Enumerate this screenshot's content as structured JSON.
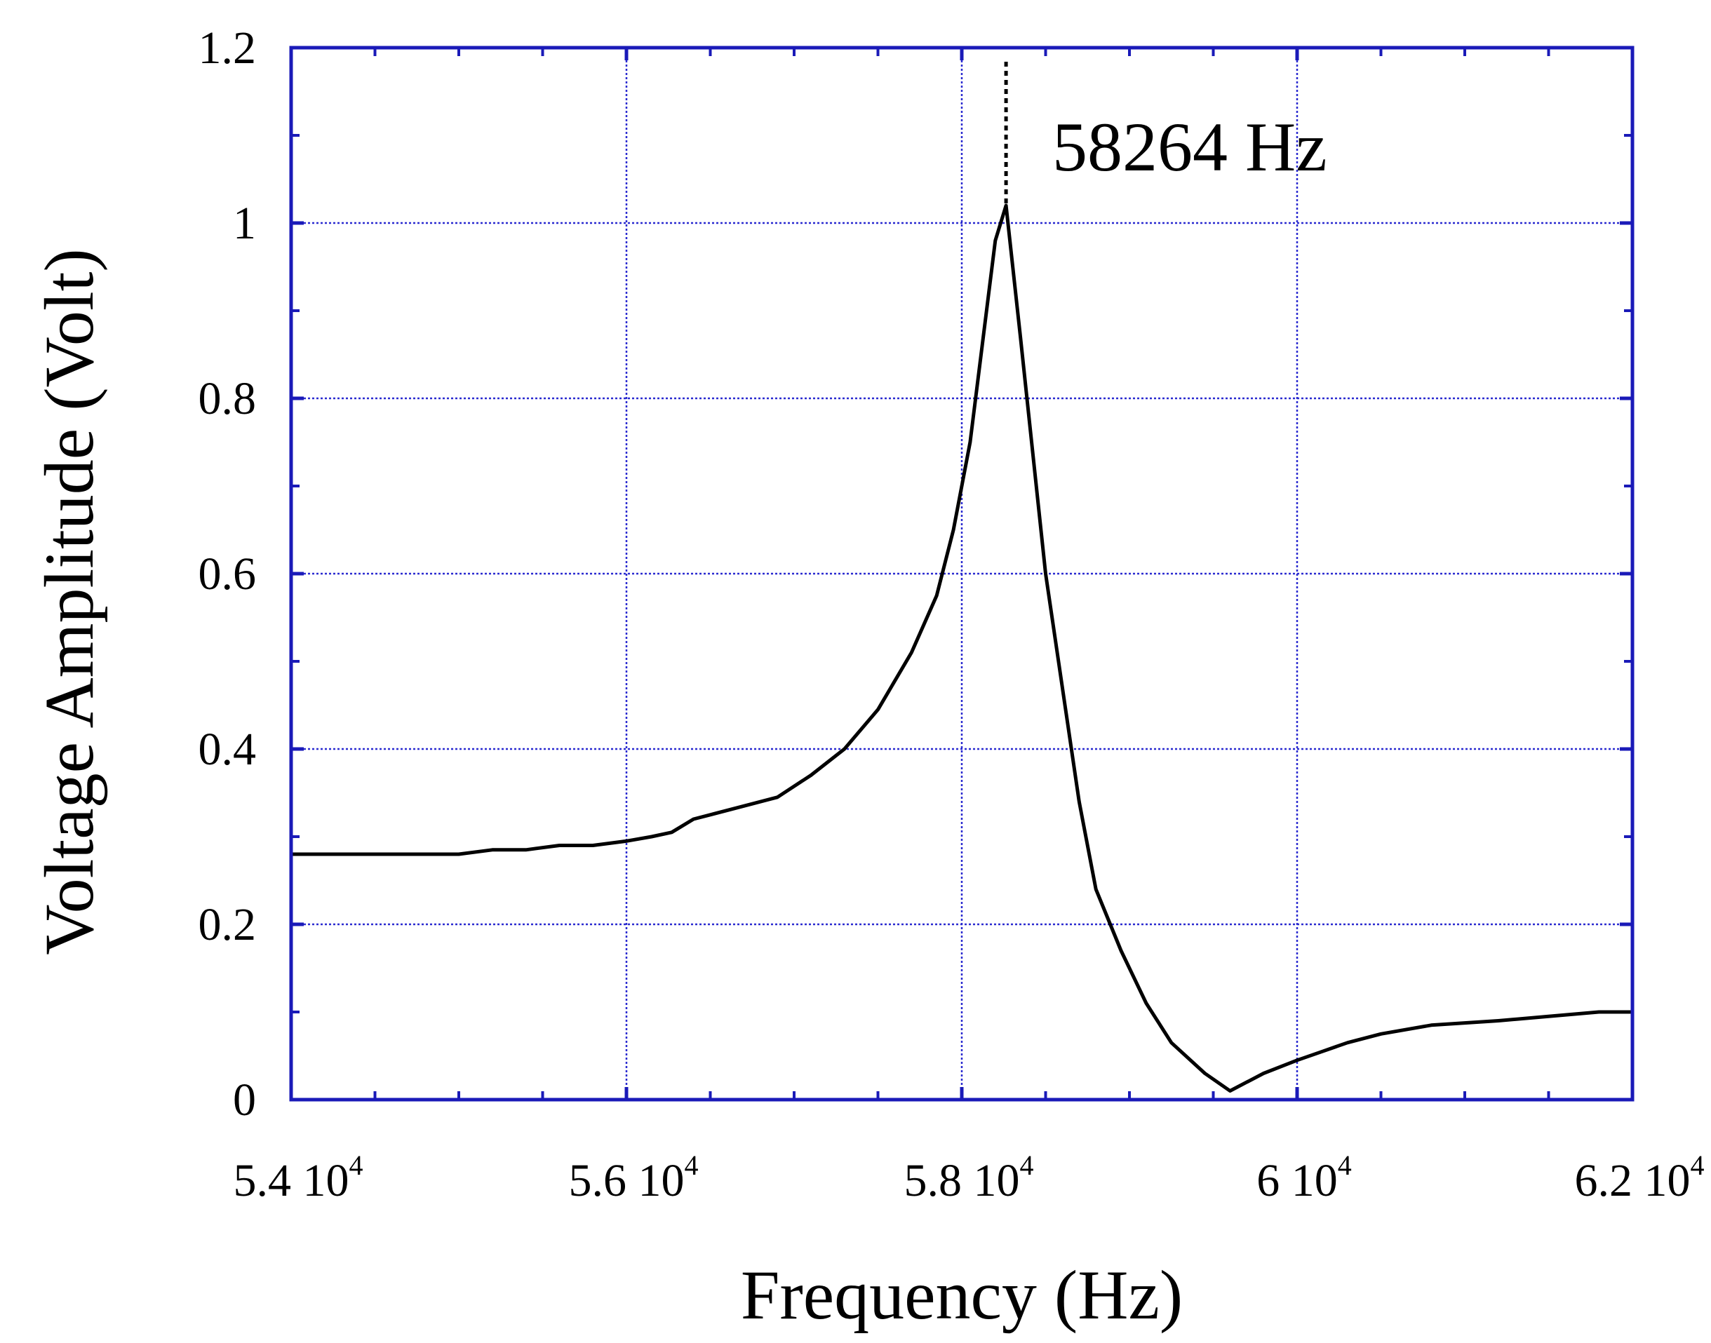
{
  "chart_data": {
    "type": "line",
    "xlabel": "Frequency (Hz)",
    "ylabel": "Voltage Amplitude (Volt)",
    "xlim": [
      54000,
      62000
    ],
    "ylim": [
      0,
      1.2
    ],
    "grid": true,
    "x_ticks": [
      {
        "value": 54000,
        "mantissa": "5.4 10",
        "exponent": "4"
      },
      {
        "value": 56000,
        "mantissa": "5.6 10",
        "exponent": "4"
      },
      {
        "value": 58000,
        "mantissa": "5.8 10",
        "exponent": "4"
      },
      {
        "value": 60000,
        "mantissa": "6 10",
        "exponent": "4"
      },
      {
        "value": 62000,
        "mantissa": "6.2 10",
        "exponent": "4"
      }
    ],
    "y_ticks": [
      {
        "value": 0,
        "label": "0"
      },
      {
        "value": 0.2,
        "label": "0.2"
      },
      {
        "value": 0.4,
        "label": "0.4"
      },
      {
        "value": 0.6,
        "label": "0.6"
      },
      {
        "value": 0.8,
        "label": "0.8"
      },
      {
        "value": 1.0,
        "label": "1"
      },
      {
        "value": 1.2,
        "label": "1.2"
      }
    ],
    "annotation": {
      "text": "58264 Hz",
      "x": 58264,
      "y_from": 1.02,
      "y_to": 1.2
    },
    "series": [
      {
        "x": [
          54000,
          55000,
          55200,
          55400,
          55600,
          55800,
          56000,
          56150,
          56270,
          56400,
          56500,
          56700,
          56900,
          57100,
          57300,
          57500,
          57700,
          57850,
          57950,
          58050,
          58200,
          58264,
          58350,
          58500,
          58700,
          58800,
          58950,
          59100,
          59250,
          59450,
          59600,
          59800,
          60000,
          60150,
          60300,
          60500,
          60800,
          61200,
          61500,
          61800,
          62000
        ],
        "y": [
          0.28,
          0.28,
          0.285,
          0.285,
          0.29,
          0.29,
          0.295,
          0.3,
          0.305,
          0.32,
          0.325,
          0.335,
          0.345,
          0.37,
          0.4,
          0.445,
          0.51,
          0.575,
          0.65,
          0.75,
          0.98,
          1.02,
          0.87,
          0.6,
          0.34,
          0.24,
          0.17,
          0.11,
          0.065,
          0.03,
          0.01,
          0.03,
          0.045,
          0.055,
          0.065,
          0.075,
          0.085,
          0.09,
          0.095,
          0.1,
          0.1
        ]
      }
    ]
  }
}
